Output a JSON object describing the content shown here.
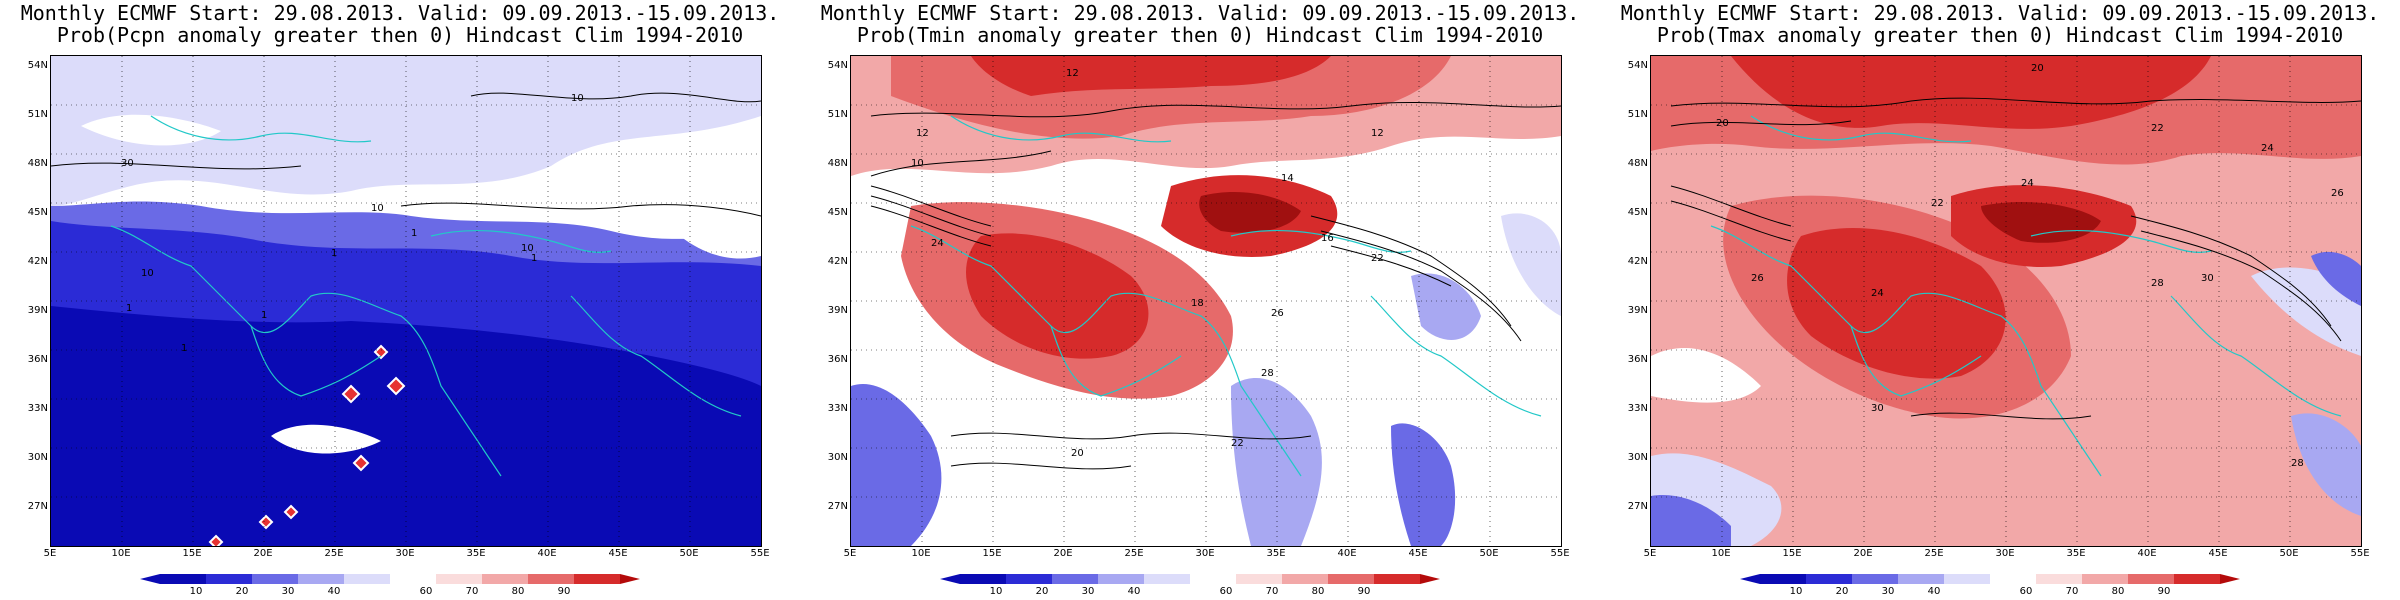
{
  "panels": [
    {
      "id": "pcpn",
      "title_line1": "Monthly ECMWF Start: 29.08.2013. Valid: 09.09.2013.-15.09.2013.",
      "title_line2": "Prob(Pcpn anomaly greater then 0) Hindcast Clim 1994-2010",
      "base_color": "#2b2bd6",
      "contour_labels": [
        "10",
        "10",
        "10",
        "10",
        "1",
        "1",
        "1",
        "1",
        "1",
        "1",
        "30"
      ]
    },
    {
      "id": "tmin",
      "title_line1": "Monthly ECMWF Start: 29.08.2013. Valid: 09.09.2013.-15.09.2013.",
      "title_line2": "Prob(Tmin anomaly greater then 0) Hindcast Clim 1994-2010",
      "base_color": "#ee3a3a",
      "contour_labels": [
        "12",
        "12",
        "12",
        "10",
        "14",
        "16",
        "22",
        "18",
        "20",
        "22",
        "24",
        "26",
        "28"
      ]
    },
    {
      "id": "tmax",
      "title_line1": "Monthly ECMWF Start: 29.08.2013. Valid: 09.09.2013.-15.09.2013.",
      "title_line2": "Prob(Tmax anomaly greater then 0) Hindcast Clim 1994-2010",
      "base_color": "#e62a2a",
      "contour_labels": [
        "20",
        "20",
        "22",
        "24",
        "26",
        "24",
        "22",
        "28",
        "30",
        "26",
        "24",
        "30",
        "28"
      ]
    }
  ],
  "lat_labels": [
    "54N",
    "51N",
    "48N",
    "45N",
    "42N",
    "39N",
    "36N",
    "33N",
    "30N",
    "27N"
  ],
  "lon_labels": [
    "5E",
    "10E",
    "15E",
    "20E",
    "25E",
    "30E",
    "35E",
    "40E",
    "45E",
    "50E",
    "55E"
  ],
  "colorbar": {
    "labels": [
      "10",
      "20",
      "30",
      "40",
      "60",
      "70",
      "80",
      "90"
    ],
    "colors": [
      "#0a0ab4",
      "#2b2bd6",
      "#6a6ae6",
      "#a8a8f2",
      "#dcdcfa",
      "#ffffff",
      "#fadcdc",
      "#f2a8a8",
      "#e66a6a",
      "#d62b2b",
      "#b40a0a"
    ]
  }
}
